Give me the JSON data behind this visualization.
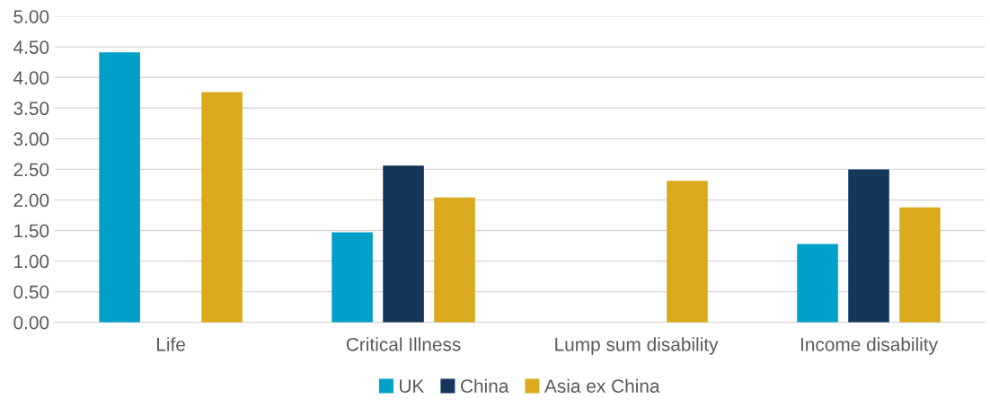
{
  "chart_data": {
    "type": "bar",
    "categories": [
      "Life",
      "Critical Illness",
      "Lump sum disability",
      "Income disability"
    ],
    "series": [
      {
        "name": "UK",
        "color": "#00a0c8",
        "values": [
          4.41,
          1.47,
          null,
          1.28
        ]
      },
      {
        "name": "China",
        "color": "#14365a",
        "values": [
          null,
          2.56,
          null,
          2.5
        ]
      },
      {
        "name": "Asia ex China",
        "color": "#d9aa1b",
        "values": [
          3.76,
          2.04,
          2.31,
          1.88
        ]
      }
    ],
    "ylim": [
      0,
      5
    ],
    "yticks": [
      {
        "value": 0,
        "label": "0.00"
      },
      {
        "value": 0.5,
        "label": "0.50"
      },
      {
        "value": 1,
        "label": "1.00"
      },
      {
        "value": 1.5,
        "label": "1.50"
      },
      {
        "value": 2,
        "label": "2.00"
      },
      {
        "value": 2.5,
        "label": "2.50"
      },
      {
        "value": 3,
        "label": "3.00"
      },
      {
        "value": 3.5,
        "label": "3.50"
      },
      {
        "value": 4,
        "label": "4.00"
      },
      {
        "value": 4.5,
        "label": "4.50"
      },
      {
        "value": 5,
        "label": "5.00"
      }
    ],
    "grid": "y",
    "legend": "bottom"
  }
}
